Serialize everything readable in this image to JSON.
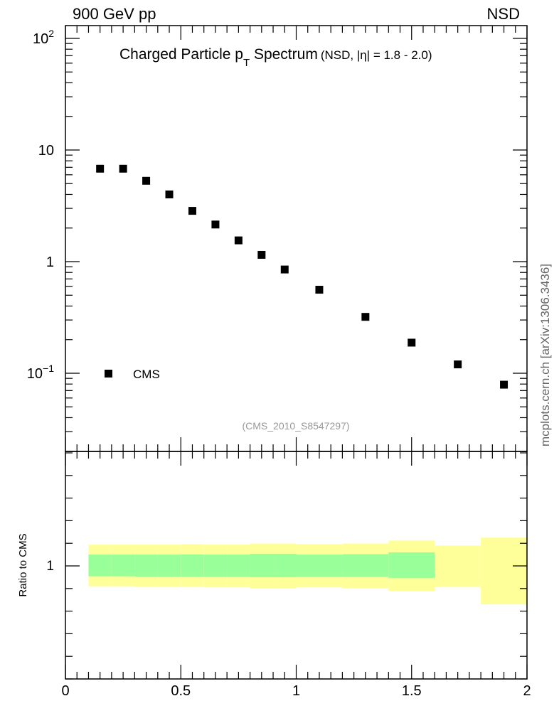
{
  "header": {
    "left": "900 GeV pp",
    "right": "NSD"
  },
  "side_label": "mcplots.cern.ch [arXiv:1306.3436]",
  "chart_data": [
    {
      "type": "scatter",
      "title_main": "Charged Particle p",
      "title_sub": "T",
      "title_tail": " Spectrum",
      "title_note": "(NSD, |η| = 1.8 - 2.0)",
      "analysis_tag": "(CMS_2010_S8547297)",
      "y_log": true,
      "xlim": [
        0,
        2
      ],
      "ylim": [
        0.022,
        140
      ],
      "y_ticks": [
        {
          "v": 0.1,
          "base": "10",
          "exp": "−1"
        },
        {
          "v": 1,
          "base": "1",
          "exp": ""
        },
        {
          "v": 10,
          "base": "10",
          "exp": ""
        },
        {
          "v": 100,
          "base": "10",
          "exp": "2"
        }
      ],
      "legend": {
        "position": "bottom-left",
        "entries": [
          "CMS"
        ]
      },
      "series": [
        {
          "name": "CMS",
          "marker": "square",
          "x": [
            0.15,
            0.25,
            0.35,
            0.45,
            0.55,
            0.65,
            0.75,
            0.85,
            0.95,
            1.1,
            1.3,
            1.5,
            1.7,
            1.9
          ],
          "y": [
            6.8,
            6.8,
            5.3,
            4.0,
            2.85,
            2.15,
            1.55,
            1.15,
            0.85,
            0.56,
            0.32,
            0.188,
            0.12,
            0.079
          ]
        }
      ]
    },
    {
      "type": "area",
      "ylabel": "Ratio to CMS",
      "xlim": [
        0,
        2
      ],
      "ylim": [
        0.5,
        1.5
      ],
      "x_ticks": [
        {
          "v": 0,
          "label": "0"
        },
        {
          "v": 0.5,
          "label": "0.5"
        },
        {
          "v": 1,
          "label": "1"
        },
        {
          "v": 1.5,
          "label": "1.5"
        },
        {
          "v": 2,
          "label": "2"
        }
      ],
      "y_ticks": [
        {
          "v": 1,
          "label": "1"
        }
      ],
      "colors": {
        "outer_band": "#ffff99",
        "inner_band": "#99ff99"
      },
      "bins": [
        {
          "x0": 0.1,
          "x1": 0.2,
          "outer": [
            0.91,
            1.094
          ],
          "inner": [
            0.954,
            1.05
          ]
        },
        {
          "x0": 0.2,
          "x1": 0.3,
          "outer": [
            0.91,
            1.094
          ],
          "inner": [
            0.954,
            1.05
          ]
        },
        {
          "x0": 0.3,
          "x1": 0.4,
          "outer": [
            0.907,
            1.094
          ],
          "inner": [
            0.952,
            1.05
          ]
        },
        {
          "x0": 0.4,
          "x1": 0.5,
          "outer": [
            0.907,
            1.094
          ],
          "inner": [
            0.952,
            1.05
          ]
        },
        {
          "x0": 0.5,
          "x1": 0.6,
          "outer": [
            0.907,
            1.096
          ],
          "inner": [
            0.952,
            1.051
          ]
        },
        {
          "x0": 0.6,
          "x1": 0.7,
          "outer": [
            0.905,
            1.094
          ],
          "inner": [
            0.952,
            1.05
          ]
        },
        {
          "x0": 0.7,
          "x1": 0.8,
          "outer": [
            0.905,
            1.094
          ],
          "inner": [
            0.952,
            1.05
          ]
        },
        {
          "x0": 0.8,
          "x1": 0.9,
          "outer": [
            0.9,
            1.099
          ],
          "inner": [
            0.95,
            1.054
          ]
        },
        {
          "x0": 0.9,
          "x1": 1.0,
          "outer": [
            0.9,
            1.099
          ],
          "inner": [
            0.95,
            1.054
          ]
        },
        {
          "x0": 1.0,
          "x1": 1.2,
          "outer": [
            0.905,
            1.096
          ],
          "inner": [
            0.952,
            1.05
          ]
        },
        {
          "x0": 1.2,
          "x1": 1.4,
          "outer": [
            0.902,
            1.099
          ],
          "inner": [
            0.952,
            1.052
          ]
        },
        {
          "x0": 1.4,
          "x1": 1.6,
          "outer": [
            0.89,
            1.112
          ],
          "inner": [
            0.947,
            1.06
          ]
        },
        {
          "x0": 1.6,
          "x1": 1.8,
          "outer": [
            0.908,
            1.09
          ],
          "inner": null
        },
        {
          "x0": 1.8,
          "x1": 2.0,
          "outer": [
            0.83,
            1.125
          ],
          "inner": null
        }
      ]
    }
  ]
}
